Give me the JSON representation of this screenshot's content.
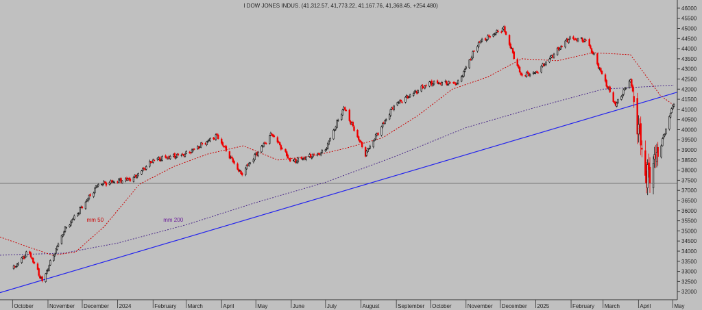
{
  "chart_data": {
    "type": "line",
    "title": "I DOW JONES INDUS. (41,312.57, 41,773.22, 41,167.76, 41,368.45, +254.480)",
    "ylim": [
      31600,
      46200
    ],
    "y_ticks": [
      32000,
      32500,
      33000,
      33500,
      34000,
      34500,
      35000,
      35500,
      36000,
      36500,
      37000,
      37500,
      38000,
      38500,
      39000,
      39500,
      40000,
      40500,
      41000,
      41500,
      42000,
      42500,
      43000,
      43500,
      44000,
      44500,
      45000,
      45500,
      46000
    ],
    "x_labels": [
      "October",
      "November",
      "December",
      "2024",
      "February",
      "March",
      "April",
      "May",
      "June",
      "July",
      "August",
      "September",
      "October",
      "November",
      "December",
      "2025",
      "February",
      "March",
      "April",
      "May"
    ],
    "grid": false,
    "series": [
      {
        "name": "price",
        "x": [
          "2023-10-01",
          "2023-10-15",
          "2023-10-27",
          "2023-11-15",
          "2023-12-01",
          "2023-12-15",
          "2024-01-15",
          "2024-02-01",
          "2024-03-01",
          "2024-03-28",
          "2024-04-18",
          "2024-05-15",
          "2024-06-01",
          "2024-06-30",
          "2024-07-17",
          "2024-08-05",
          "2024-08-30",
          "2024-09-30",
          "2024-10-25",
          "2024-11-12",
          "2024-12-04",
          "2024-12-19",
          "2025-01-01",
          "2025-01-30",
          "2025-02-15",
          "2025-03-12",
          "2025-03-25",
          "2025-04-08",
          "2025-04-20",
          "2025-05-02"
        ],
        "values": [
          33100,
          34000,
          32500,
          35000,
          36200,
          37300,
          37600,
          38500,
          38800,
          39700,
          37800,
          39800,
          38400,
          38900,
          41100,
          38800,
          41200,
          42300,
          42300,
          44300,
          45000,
          42700,
          42800,
          44500,
          44400,
          41200,
          42500,
          37600,
          39100,
          41368
        ]
      },
      {
        "name": "mm 50",
        "x": [
          "2023-09-20",
          "2023-10-15",
          "2023-11-05",
          "2023-11-25",
          "2023-12-20",
          "2024-01-20",
          "2024-02-20",
          "2024-03-20",
          "2024-04-20",
          "2024-05-20",
          "2024-06-20",
          "2024-07-20",
          "2024-08-20",
          "2024-09-20",
          "2024-10-20",
          "2024-11-20",
          "2024-12-20",
          "2025-01-20",
          "2025-02-20",
          "2025-03-25",
          "2025-04-20",
          "2025-05-02"
        ],
        "values": [
          34700,
          34200,
          33800,
          33950,
          35200,
          37300,
          38200,
          38800,
          39200,
          38500,
          38700,
          39100,
          39600,
          40700,
          42000,
          42600,
          43500,
          43400,
          43800,
          43700,
          41700,
          41200
        ]
      },
      {
        "name": "mm 200",
        "x": [
          "2023-09-20",
          "2023-11-15",
          "2024-01-01",
          "2024-03-01",
          "2024-05-01",
          "2024-07-01",
          "2024-09-01",
          "2024-11-01",
          "2025-01-01",
          "2025-03-01",
          "2025-05-02"
        ],
        "values": [
          33800,
          33900,
          34400,
          35300,
          36400,
          37400,
          38700,
          40100,
          41100,
          42000,
          42200
        ]
      }
    ],
    "annotations": [
      {
        "text": "mm 50",
        "x": "2023-12-05",
        "y": 35450,
        "color": "#cc0000"
      },
      {
        "text": "mm 200",
        "x": "2024-02-10",
        "y": 35450,
        "color": "#6a1b9a"
      }
    ],
    "trendline": {
      "x": [
        "2023-09-20",
        "2025-05-05"
      ],
      "y": [
        31950,
        41850
      ],
      "color": "#2222ee"
    },
    "horizontal_line": {
      "y": 37350,
      "color": "#707070"
    },
    "colors": {
      "background": "#c0c0c0",
      "up_candle": "#111111",
      "down_candle": "#ee0000",
      "mm50": "#cc0000",
      "mm200": "#4b2a8a",
      "trend": "#2222ee"
    }
  }
}
